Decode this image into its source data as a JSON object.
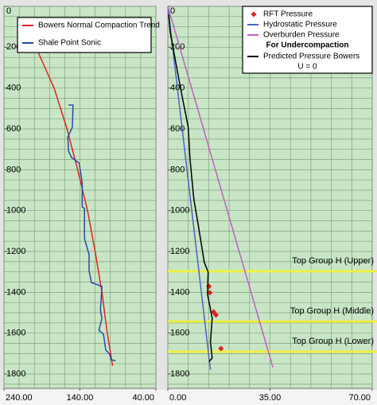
{
  "chart_data": [
    {
      "type": "line",
      "xlim": [
        240,
        40
      ],
      "xticks": [
        {
          "value": 240,
          "label": "240.00"
        },
        {
          "value": 140,
          "label": "140.00"
        },
        {
          "value": 40,
          "label": "40.00"
        }
      ],
      "ylim": [
        0,
        1870
      ],
      "yticks": [
        0,
        200,
        400,
        600,
        800,
        1000,
        1200,
        1400,
        1600,
        1800
      ],
      "grid": true,
      "xgrid_step": 20,
      "ygrid_step": 50,
      "series": [
        {
          "name": "Bowers Normal Compaction Trend",
          "color": "#e02020",
          "x": [
            198,
            186,
            174,
            157,
            143,
            130,
            120,
            111,
            104,
            97
          ],
          "values": [
            200,
            300,
            400,
            600,
            800,
            1000,
            1200,
            1400,
            1600,
            1760
          ]
        },
        {
          "name": "Shale Point Sonic",
          "color": "#2a48a8",
          "x": [
            155,
            149,
            150,
            156,
            155,
            151,
            141,
            137,
            137,
            134,
            134,
            128,
            128,
            125,
            111,
            113,
            111,
            115,
            109,
            106,
            101,
            99,
            93
          ],
          "values": [
            483,
            483,
            592,
            640,
            709,
            740,
            767,
            865,
            982,
            989,
            1137,
            1215,
            1293,
            1352,
            1371,
            1488,
            1527,
            1586,
            1605,
            1683,
            1702,
            1730,
            1735
          ]
        }
      ]
    },
    {
      "type": "line",
      "xlim": [
        0,
        70
      ],
      "xticks": [
        {
          "value": 0,
          "label": "0.00"
        },
        {
          "value": 35,
          "label": "35.00"
        },
        {
          "value": 70,
          "label": "70.00"
        }
      ],
      "ylim": [
        0,
        1870
      ],
      "yticks": [
        0,
        200,
        400,
        600,
        800,
        1000,
        1200,
        1400,
        1600,
        1800
      ],
      "grid": true,
      "xgrid_step": 7,
      "ygrid_step": 50,
      "series": [
        {
          "name": "RFT Pressure",
          "color": "#e02020",
          "mode": "markers",
          "x": [
            14.1,
            14.4,
            15.7,
            16.5,
            18.2
          ],
          "values": [
            1371,
            1402,
            1496,
            1511,
            1675
          ]
        },
        {
          "name": "Hydrostatic Pressure",
          "color": "#4a62c8",
          "x": [
            0,
            14.6
          ],
          "values": [
            0,
            1780
          ]
        },
        {
          "name": "Overburden Pressure",
          "color": "#c060c0",
          "x": [
            0,
            36
          ],
          "values": [
            0,
            1768
          ]
        },
        {
          "name": "Predicted Pressure Bowers",
          "color": "#000000",
          "x": [
            0.3,
            0.8,
            4.3,
            7.0,
            7.6,
            8.9,
            10.3,
            12.5,
            13.8,
            13.6,
            15.2,
            14.6,
            15.2,
            14.1
          ],
          "values": [
            40,
            125,
            397,
            592,
            748,
            943,
            1060,
            1254,
            1300,
            1410,
            1527,
            1644,
            1722,
            1740
          ]
        }
      ],
      "legend_heading": "For Undercompaction",
      "legend_footer": "U = 0",
      "annotations": [
        {
          "text": "Top Group H (Upper)",
          "value": 1297,
          "color": "#f0f040"
        },
        {
          "text": "Top Group H (Middle)",
          "value": 1543,
          "color": "#f0f040"
        },
        {
          "text": "Top Group H (Lower)",
          "value": 1691,
          "color": "#f0f040"
        }
      ]
    }
  ]
}
